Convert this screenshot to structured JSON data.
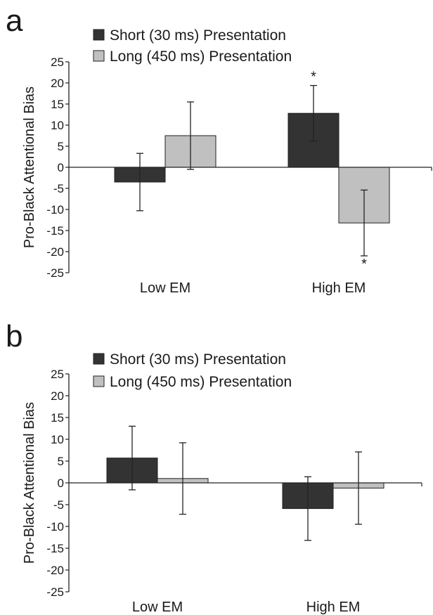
{
  "chart_data": [
    {
      "panel": "a",
      "type": "bar",
      "categories": [
        "Low EM",
        "High EM"
      ],
      "series": [
        {
          "name": "Short (30 ms) Presentation",
          "color": "#333333",
          "values": [
            -3.5,
            12.8
          ],
          "error": [
            6.8,
            6.6
          ],
          "annotations": [
            "",
            "*"
          ]
        },
        {
          "name": "Long (450 ms) Presentation",
          "color": "#c0c0c0",
          "values": [
            7.5,
            -13.2
          ],
          "error": [
            8.0,
            7.8
          ],
          "annotations": [
            "",
            "*"
          ]
        }
      ],
      "ylabel": "Pro-Black Attentional Bias",
      "ylim": [
        -25,
        25
      ],
      "yticks": [
        25,
        20,
        15,
        10,
        5,
        0,
        -5,
        -10,
        -15,
        -20,
        -25
      ],
      "legend": "top"
    },
    {
      "panel": "b",
      "type": "bar",
      "categories": [
        "Low EM",
        "High EM"
      ],
      "series": [
        {
          "name": "Short (30 ms) Presentation",
          "color": "#333333",
          "values": [
            5.7,
            -5.9
          ],
          "error": [
            7.3,
            7.3
          ],
          "annotations": [
            "",
            ""
          ]
        },
        {
          "name": "Long (450 ms) Presentation",
          "color": "#c0c0c0",
          "values": [
            1.0,
            -1.2
          ],
          "error": [
            8.2,
            8.3
          ],
          "annotations": [
            "",
            ""
          ]
        }
      ],
      "ylabel": "Pro-Black Attentional Bias",
      "ylim": [
        -25,
        25
      ],
      "yticks": [
        25,
        20,
        15,
        10,
        5,
        0,
        -5,
        -10,
        -15,
        -20,
        -25
      ],
      "legend": "top"
    }
  ]
}
